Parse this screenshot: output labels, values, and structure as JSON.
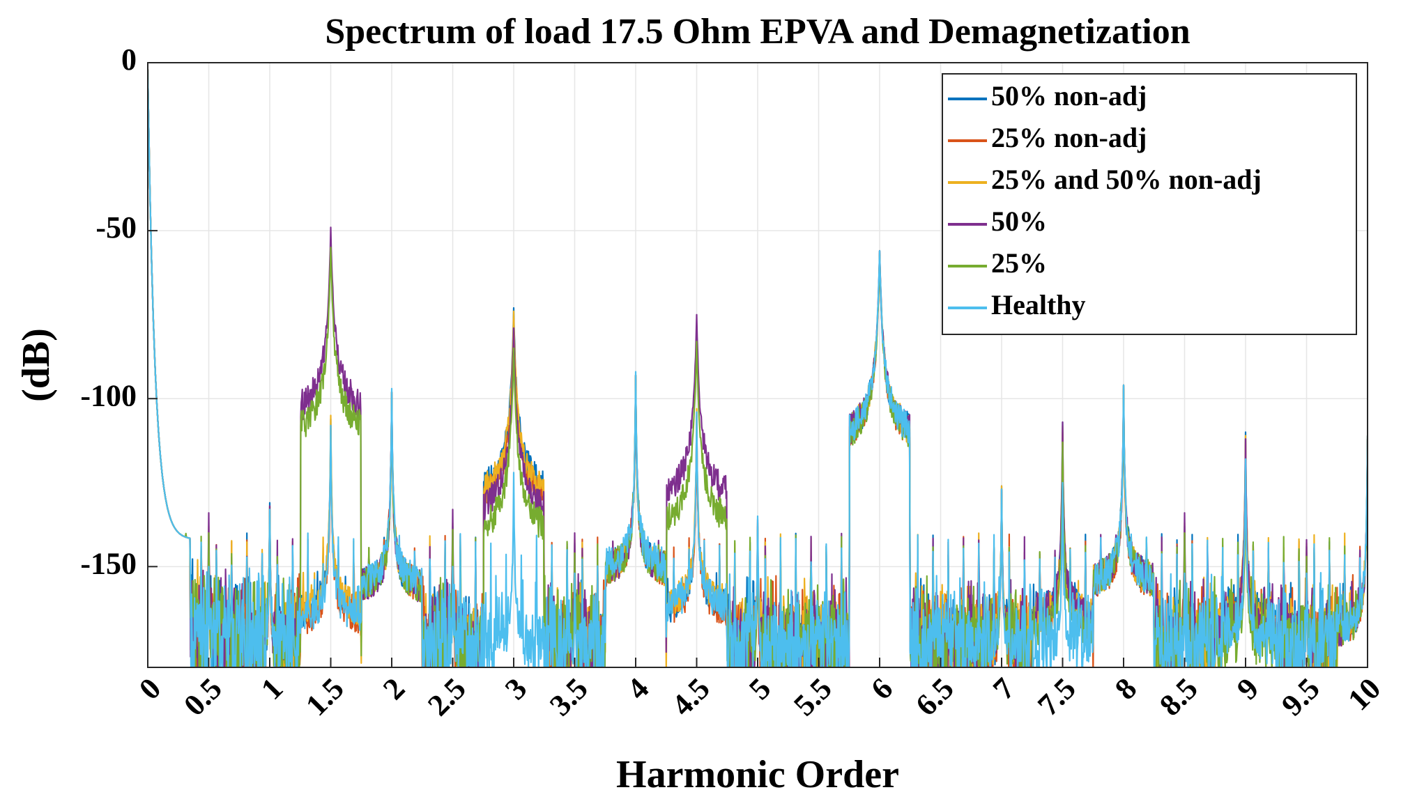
{
  "chart_data": {
    "type": "line",
    "title": "Spectrum of load 17.5 Ohm EPVA and Demagnetization",
    "xlabel": "Harmonic Order",
    "ylabel": "(dB)",
    "xlim": [
      0,
      10
    ],
    "ylim": [
      -180,
      0
    ],
    "xticks": [
      0,
      0.5,
      1,
      1.5,
      2,
      2.5,
      3,
      3.5,
      4,
      4.5,
      5,
      5.5,
      6,
      6.5,
      7,
      7.5,
      8,
      8.5,
      9,
      9.5,
      10
    ],
    "xtick_labels": [
      "0",
      "0.5",
      "1",
      "1.5",
      "2",
      "2.5",
      "3",
      "3.5",
      "4",
      "4.5",
      "5",
      "5.5",
      "6",
      "6.5",
      "7",
      "7.5",
      "8",
      "8.5",
      "9",
      "9.5",
      "10"
    ],
    "yticks": [
      0,
      -50,
      -100,
      -150
    ],
    "ytick_labels": [
      "0",
      "-50",
      "-100",
      "-150"
    ],
    "grid": true,
    "legend_position": "top-right",
    "series": [
      {
        "name": "50% non-adj",
        "color": "#0072BD",
        "peaks": [
          [
            0.5,
            -140
          ],
          [
            1.0,
            -131
          ],
          [
            1.5,
            -106
          ],
          [
            2.0,
            -98
          ],
          [
            2.5,
            -138
          ],
          [
            3.0,
            -73
          ],
          [
            3.5,
            -143
          ],
          [
            4.0,
            -93
          ],
          [
            4.5,
            -104
          ],
          [
            5.0,
            -138
          ],
          [
            6.0,
            -56
          ],
          [
            7.0,
            -126
          ],
          [
            7.5,
            -107
          ],
          [
            8.0,
            -96
          ],
          [
            8.5,
            -138
          ],
          [
            9.0,
            -110
          ],
          [
            9.5,
            -144
          ],
          [
            10.0,
            -111
          ]
        ]
      },
      {
        "name": "25% non-adj",
        "color": "#D95319",
        "peaks": [
          [
            0.5,
            -141
          ],
          [
            1.0,
            -133
          ],
          [
            1.5,
            -108
          ],
          [
            2.0,
            -98
          ],
          [
            2.5,
            -140
          ],
          [
            3.0,
            -76
          ],
          [
            3.5,
            -145
          ],
          [
            4.0,
            -93
          ],
          [
            4.5,
            -105
          ],
          [
            5.0,
            -140
          ],
          [
            6.0,
            -57
          ],
          [
            7.0,
            -127
          ],
          [
            7.5,
            -110
          ],
          [
            8.0,
            -97
          ],
          [
            8.5,
            -140
          ],
          [
            9.0,
            -112
          ],
          [
            9.5,
            -146
          ],
          [
            10.0,
            -112
          ]
        ]
      },
      {
        "name": "25% and 50% non-adj",
        "color": "#EDB120",
        "peaks": [
          [
            0.5,
            -138
          ],
          [
            1.0,
            -132
          ],
          [
            1.5,
            -105
          ],
          [
            2.0,
            -98
          ],
          [
            2.5,
            -137
          ],
          [
            3.0,
            -74
          ],
          [
            3.5,
            -142
          ],
          [
            4.0,
            -93
          ],
          [
            4.5,
            -103
          ],
          [
            5.0,
            -137
          ],
          [
            6.0,
            -56
          ],
          [
            7.0,
            -126
          ],
          [
            7.5,
            -108
          ],
          [
            8.0,
            -96
          ],
          [
            8.5,
            -137
          ],
          [
            9.0,
            -111
          ],
          [
            9.5,
            -143
          ],
          [
            10.0,
            -111
          ]
        ]
      },
      {
        "name": "50%",
        "color": "#7E2F8E",
        "peaks": [
          [
            0.5,
            -134
          ],
          [
            1.0,
            -132
          ],
          [
            1.5,
            -49
          ],
          [
            2.0,
            -98
          ],
          [
            2.5,
            -133
          ],
          [
            3.0,
            -79
          ],
          [
            3.5,
            -140
          ],
          [
            4.0,
            -93
          ],
          [
            4.5,
            -75
          ],
          [
            5.0,
            -136
          ],
          [
            6.0,
            -56
          ],
          [
            7.0,
            -127
          ],
          [
            7.5,
            -107
          ],
          [
            8.0,
            -96
          ],
          [
            8.5,
            -134
          ],
          [
            9.0,
            -112
          ],
          [
            9.5,
            -142
          ],
          [
            10.0,
            -112
          ]
        ]
      },
      {
        "name": "25%",
        "color": "#77AC30",
        "peaks": [
          [
            0.5,
            -140
          ],
          [
            1.0,
            -133
          ],
          [
            1.5,
            -55
          ],
          [
            2.0,
            -98
          ],
          [
            2.5,
            -139
          ],
          [
            3.0,
            -85
          ],
          [
            3.5,
            -146
          ],
          [
            4.0,
            -93
          ],
          [
            4.5,
            -83
          ],
          [
            5.0,
            -139
          ],
          [
            6.0,
            -57
          ],
          [
            7.0,
            -127
          ],
          [
            7.5,
            -113
          ],
          [
            8.0,
            -96
          ],
          [
            8.5,
            -140
          ],
          [
            9.0,
            -122
          ],
          [
            9.5,
            -147
          ],
          [
            10.0,
            -112
          ]
        ]
      },
      {
        "name": "Healthy",
        "color": "#4DBEEE",
        "peaks": [
          [
            0.5,
            -150
          ],
          [
            1.0,
            -133
          ],
          [
            1.5,
            -108
          ],
          [
            2.0,
            -97
          ],
          [
            2.5,
            -150
          ],
          [
            3.0,
            -122
          ],
          [
            3.5,
            -152
          ],
          [
            4.0,
            -92
          ],
          [
            4.5,
            -104
          ],
          [
            5.0,
            -135
          ],
          [
            6.0,
            -56
          ],
          [
            7.0,
            -127
          ],
          [
            7.5,
            -125
          ],
          [
            8.0,
            -96
          ],
          [
            8.5,
            -152
          ],
          [
            9.0,
            -118
          ],
          [
            9.5,
            -152
          ],
          [
            10.0,
            -111
          ]
        ]
      }
    ]
  }
}
